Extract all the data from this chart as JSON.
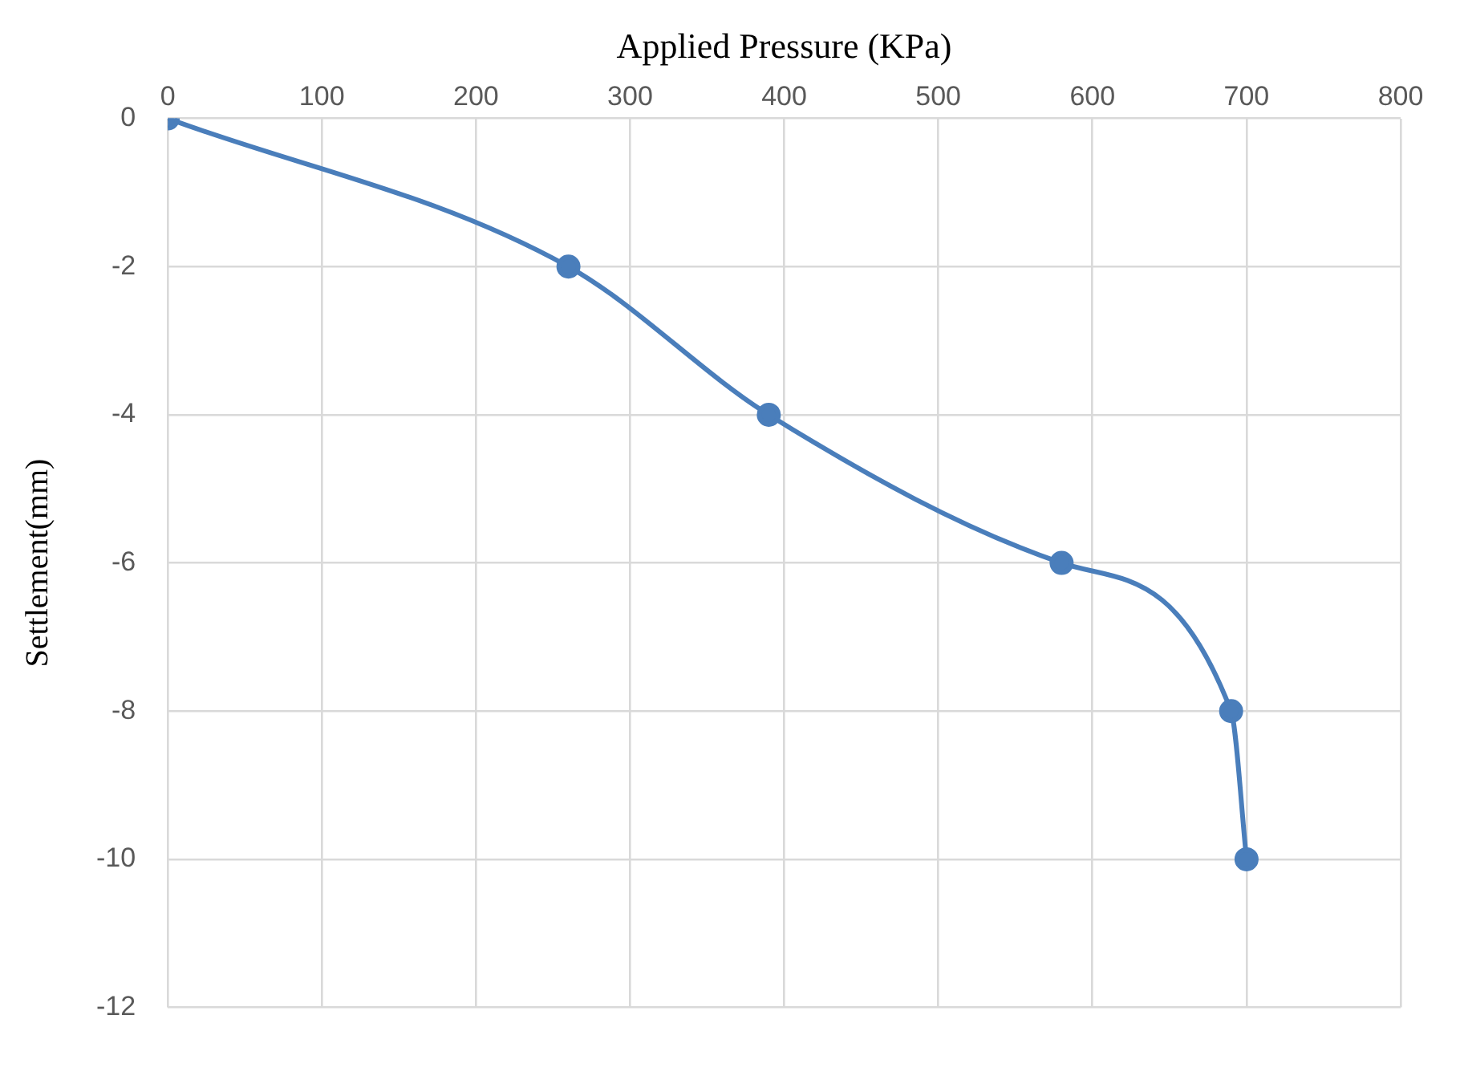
{
  "chart_data": {
    "type": "line",
    "xlabel": "Applied Pressure (KPa)",
    "ylabel": "Settlement(mm)",
    "series": [
      {
        "color": "#4a7ebb",
        "x": [
          0,
          260,
          390,
          580,
          690,
          700
        ],
        "values": [
          0,
          -2,
          -4,
          -6,
          -8,
          -10
        ]
      }
    ],
    "xlim": [
      0,
      800
    ],
    "xticks": [
      0,
      100,
      200,
      300,
      400,
      500,
      600,
      700,
      800
    ],
    "ylim": [
      -12,
      0
    ],
    "yticks": [
      -12,
      -10,
      -8,
      -6,
      -4,
      -2,
      0
    ],
    "grid": true,
    "legend": false,
    "marker": "circle",
    "line_style": "solid"
  }
}
